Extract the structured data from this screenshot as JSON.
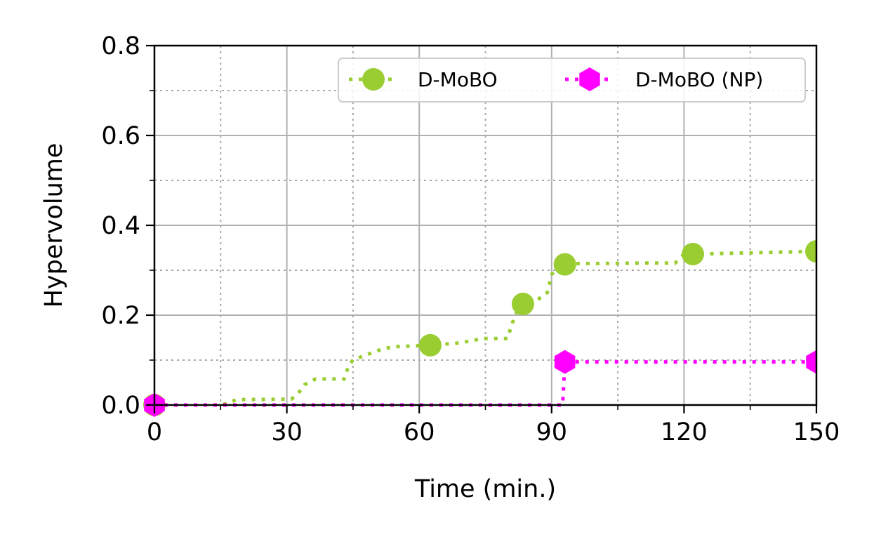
{
  "chart_data": {
    "type": "line",
    "title": "",
    "xlabel": "Time (min.)",
    "ylabel": "Hypervolume",
    "xlim": [
      0,
      150
    ],
    "ylim": [
      0,
      0.8
    ],
    "xticks": [
      0,
      30,
      60,
      90,
      120,
      150
    ],
    "xtick_labels": [
      "0",
      "30",
      "60",
      "90",
      "120",
      "150"
    ],
    "yticks": [
      0.0,
      0.2,
      0.4,
      0.6,
      0.8
    ],
    "ytick_labels": [
      "0.0",
      "0.2",
      "0.4",
      "0.6",
      "0.8"
    ],
    "grid": true,
    "legend_position": "top-right",
    "series": [
      {
        "name": "D-MoBO",
        "color": "#9acd32",
        "marker": "circle",
        "line_style": "dotted",
        "x": [
          0,
          15,
          16.5,
          17.5,
          18.5,
          31,
          32.5,
          34,
          35,
          36.5,
          43,
          44,
          45,
          47,
          52,
          55,
          62.5,
          66,
          68,
          72,
          74,
          80,
          81,
          82,
          83.5,
          86,
          87.5,
          89,
          89.5,
          90,
          91,
          93,
          96,
          100,
          110,
          118,
          120,
          122,
          150
        ],
        "y": [
          0,
          0,
          0.004,
          0.007,
          0.012,
          0.013,
          0.025,
          0.045,
          0.05,
          0.058,
          0.058,
          0.088,
          0.1,
          0.108,
          0.126,
          0.13,
          0.133,
          0.136,
          0.137,
          0.143,
          0.148,
          0.148,
          0.18,
          0.205,
          0.225,
          0.225,
          0.24,
          0.25,
          0.27,
          0.29,
          0.305,
          0.313,
          0.315,
          0.315,
          0.316,
          0.316,
          0.336,
          0.336,
          0.342
        ],
        "marker_points": [
          [
            0,
            0
          ],
          [
            62.5,
            0.133
          ],
          [
            83.5,
            0.225
          ],
          [
            93,
            0.313
          ],
          [
            122,
            0.336
          ],
          [
            150,
            0.342
          ]
        ]
      },
      {
        "name": "D-MoBO (NP)",
        "color": "#ff00ff",
        "marker": "hexagon",
        "line_style": "dotted",
        "x": [
          0,
          92.5,
          93,
          150
        ],
        "y": [
          0,
          0,
          0.096,
          0.096
        ],
        "marker_points": [
          [
            0,
            0
          ],
          [
            93,
            0.096
          ],
          [
            150,
            0.096
          ]
        ]
      }
    ]
  }
}
